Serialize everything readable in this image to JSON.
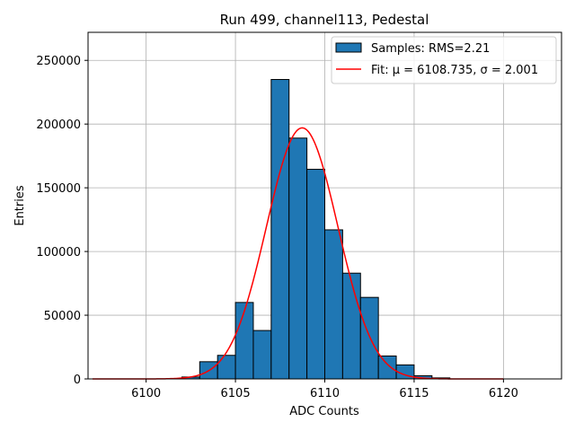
{
  "chart_data": {
    "type": "bar",
    "title": "Run 499, channel113, Pedestal",
    "xlabel": "ADC Counts",
    "ylabel": "Entries",
    "xlim": [
      6096.75,
      6123.25
    ],
    "ylim": [
      0,
      272000
    ],
    "xticks": [
      6100,
      6105,
      6110,
      6115,
      6120
    ],
    "yticks": [
      0,
      50000,
      100000,
      150000,
      200000,
      250000
    ],
    "grid": true,
    "legend_position": "top-right",
    "histogram": {
      "name": "Samples: RMS=2.21",
      "color": "#1f77b4",
      "bins": [
        {
          "left": 6102,
          "right": 6103,
          "value": 1500
        },
        {
          "left": 6103,
          "right": 6104,
          "value": 13500
        },
        {
          "left": 6104,
          "right": 6105,
          "value": 18500
        },
        {
          "left": 6105,
          "right": 6106,
          "value": 60000
        },
        {
          "left": 6106,
          "right": 6107,
          "value": 38000
        },
        {
          "left": 6107,
          "right": 6108,
          "value": 235000
        },
        {
          "left": 6108,
          "right": 6109,
          "value": 189000
        },
        {
          "left": 6109,
          "right": 6110,
          "value": 164500
        },
        {
          "left": 6110,
          "right": 6111,
          "value": 117000
        },
        {
          "left": 6111,
          "right": 6112,
          "value": 83000
        },
        {
          "left": 6112,
          "right": 6113,
          "value": 64000
        },
        {
          "left": 6113,
          "right": 6114,
          "value": 18000
        },
        {
          "left": 6114,
          "right": 6115,
          "value": 11000
        },
        {
          "left": 6115,
          "right": 6116,
          "value": 2500
        },
        {
          "left": 6116,
          "right": 6117,
          "value": 800
        }
      ]
    },
    "fit": {
      "name": "Fit: μ = 6108.735, σ = 2.001",
      "color": "#ff0000",
      "mu": 6108.735,
      "sigma": 2.001,
      "amplitude": 197000,
      "x_range": [
        6097,
        6120
      ]
    }
  }
}
